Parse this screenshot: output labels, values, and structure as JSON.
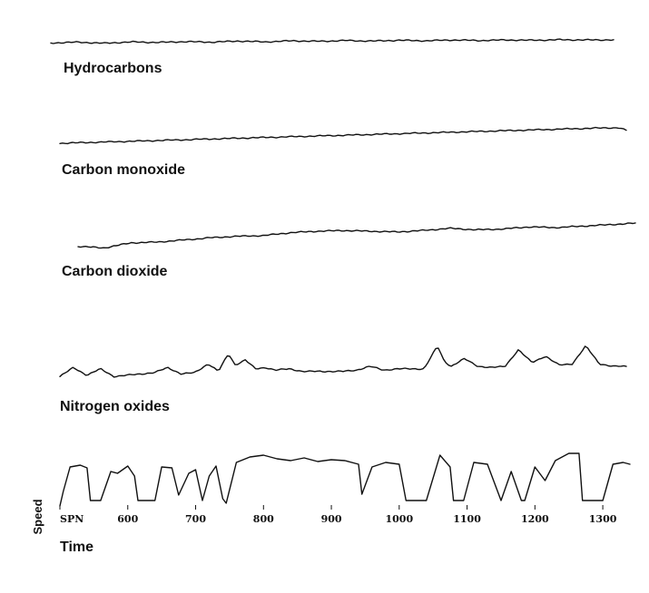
{
  "chart_data": {
    "type": "line",
    "title": "",
    "panels": [
      {
        "label": "Hydrocarbons",
        "x": [
          500,
          540,
          580,
          620,
          660,
          700,
          740,
          780,
          820,
          860,
          900,
          940,
          980,
          1020,
          1060,
          1100,
          1140,
          1180,
          1220,
          1260,
          1300,
          1340
        ],
        "values": [
          0.2,
          0.5,
          0.1,
          0.6,
          0.4,
          0.7,
          0.5,
          0.9,
          0.6,
          1.0,
          0.8,
          1.1,
          0.9,
          1.2,
          1.0,
          1.3,
          1.1,
          1.3,
          1.2,
          1.4,
          1.3,
          1.35
        ]
      },
      {
        "label": "Carbon monoxide",
        "x": [
          500,
          550,
          600,
          650,
          700,
          750,
          800,
          850,
          900,
          950,
          1000,
          1050,
          1100,
          1150,
          1200,
          1250,
          1300,
          1330,
          1340
        ],
        "values": [
          0.0,
          0.15,
          0.3,
          0.45,
          0.6,
          0.75,
          0.9,
          1.05,
          1.2,
          1.35,
          1.5,
          1.65,
          1.8,
          1.95,
          2.1,
          2.25,
          2.4,
          2.45,
          2.0
        ]
      },
      {
        "label": "Carbon dioxide",
        "x": [
          500,
          540,
          580,
          620,
          660,
          700,
          740,
          780,
          820,
          860,
          900,
          940,
          980,
          1020,
          1060,
          1100,
          1140,
          1180,
          1220,
          1260,
          1300,
          1340
        ],
        "values": [
          0.4,
          0.2,
          0.9,
          1.0,
          1.3,
          1.6,
          1.8,
          1.9,
          2.3,
          2.5,
          2.6,
          2.5,
          2.4,
          2.6,
          2.9,
          2.7,
          2.8,
          3.1,
          3.0,
          3.2,
          3.4,
          3.6
        ]
      },
      {
        "label": "Nitrogen oxides",
        "x": [
          500,
          520,
          540,
          560,
          580,
          600,
          620,
          640,
          660,
          680,
          700,
          720,
          735,
          750,
          760,
          775,
          790,
          805,
          820,
          840,
          860,
          880,
          900,
          920,
          940,
          960,
          980,
          1000,
          1020,
          1040,
          1060,
          1070,
          1080,
          1100,
          1120,
          1140,
          1160,
          1180,
          1200,
          1220,
          1240,
          1260,
          1280,
          1300,
          1320,
          1340
        ],
        "values": [
          0.2,
          0.9,
          0.3,
          0.8,
          0.2,
          0.3,
          0.4,
          0.5,
          0.9,
          0.4,
          0.5,
          1.2,
          0.6,
          2.0,
          1.1,
          1.5,
          0.8,
          0.9,
          0.7,
          0.8,
          0.6,
          0.6,
          0.6,
          0.6,
          0.7,
          1.0,
          0.7,
          0.8,
          0.8,
          0.8,
          2.6,
          1.4,
          1.0,
          1.6,
          1.0,
          0.9,
          1.0,
          2.3,
          1.3,
          1.8,
          1.1,
          1.2,
          2.6,
          1.2,
          1.0,
          1.0
        ]
      },
      {
        "label": "",
        "ylabel": "Speed",
        "x": [
          500,
          505,
          515,
          530,
          540,
          545,
          560,
          575,
          585,
          600,
          610,
          615,
          640,
          650,
          665,
          675,
          690,
          700,
          710,
          720,
          730,
          740,
          745,
          760,
          780,
          800,
          820,
          840,
          860,
          880,
          900,
          920,
          940,
          945,
          960,
          980,
          1000,
          1010,
          1020,
          1040,
          1060,
          1075,
          1080,
          1095,
          1110,
          1130,
          1150,
          1165,
          1180,
          1185,
          1200,
          1215,
          1230,
          1250,
          1265,
          1270,
          1285,
          1300,
          1315,
          1330,
          1340
        ],
        "values": [
          2,
          18,
          45,
          47,
          44,
          8,
          8,
          40,
          38,
          46,
          35,
          8,
          8,
          45,
          44,
          14,
          38,
          42,
          8,
          35,
          46,
          10,
          5,
          50,
          56,
          58,
          54,
          52,
          55,
          51,
          53,
          52,
          48,
          15,
          45,
          50,
          48,
          8,
          8,
          8,
          58,
          45,
          8,
          8,
          50,
          48,
          8,
          40,
          8,
          8,
          45,
          30,
          52,
          60,
          60,
          8,
          8,
          8,
          48,
          50,
          48
        ],
        "ylim": [
          0,
          65
        ]
      }
    ],
    "xlabel": "Time",
    "x_ticks": [
      "SPN",
      "600",
      "700",
      "800",
      "900",
      "1000",
      "1100",
      "1200",
      "1300"
    ],
    "x_tick_values": [
      500,
      600,
      700,
      800,
      900,
      1000,
      1100,
      1200,
      1300
    ],
    "xlim": [
      500,
      1340
    ]
  }
}
